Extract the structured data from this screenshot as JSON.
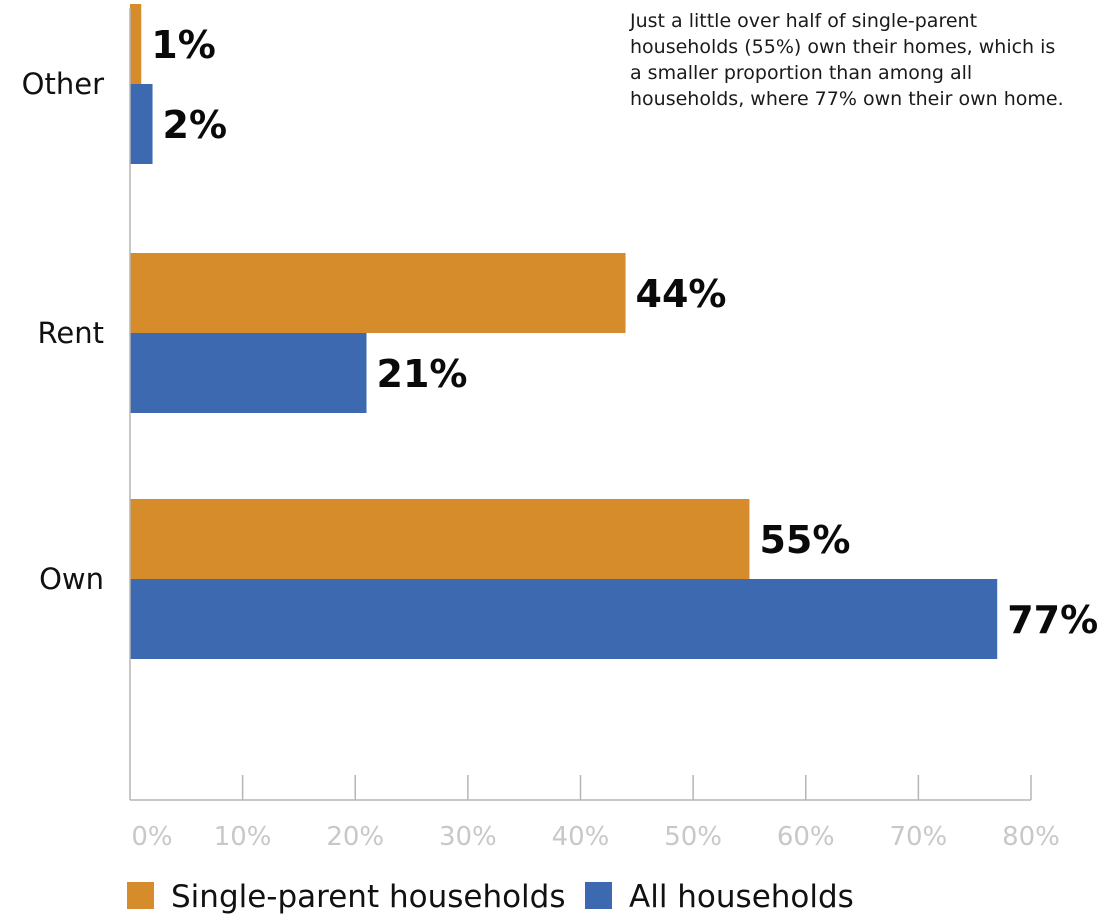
{
  "chart_data": {
    "type": "bar",
    "orientation": "horizontal",
    "categories": [
      "Other",
      "Rent",
      "Own"
    ],
    "series": [
      {
        "name": "Single-parent households",
        "values": [
          1,
          44,
          55
        ],
        "labels": [
          "1%",
          "44%",
          "55%"
        ],
        "color": "#D68C2A"
      },
      {
        "name": "All households",
        "values": [
          2,
          21,
          77
        ],
        "labels": [
          "2%",
          "21%",
          "77%"
        ],
        "color": "#3D69B1"
      }
    ],
    "xlim": [
      0,
      80
    ],
    "xticks": [
      0,
      10,
      20,
      30,
      40,
      50,
      60,
      70,
      80
    ],
    "xtick_labels": [
      "0%",
      "10%",
      "20%",
      "30%",
      "40%",
      "50%",
      "60%",
      "70%",
      "80%"
    ],
    "annotation": "Just a little over half of single-parent households (55%) own their homes, which is a smaller proportion than among all households, where 77% own their own home.",
    "legend_position": "bottom",
    "grid": false
  }
}
